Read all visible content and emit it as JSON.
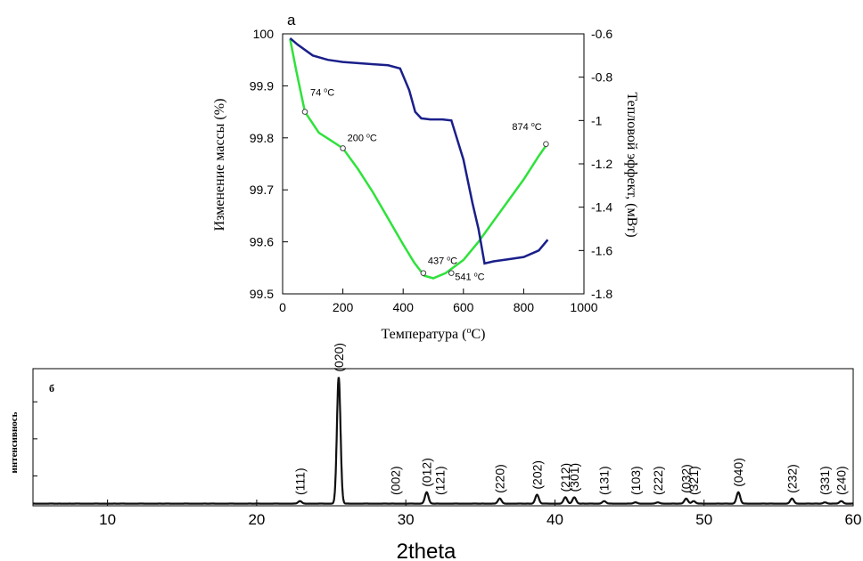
{
  "chart_data": [
    {
      "panel_label": "a",
      "type": "line",
      "xlabel": "Температура (°C)",
      "xlabel_base": "Температура (",
      "xlabel_sup": "o",
      "xlabel_end": "C)",
      "ylabel": "Изменение массы (%)",
      "y2label": "Тепловой эффект, (мВт)",
      "xlim": [
        0,
        1000
      ],
      "ylim": [
        99.5,
        100
      ],
      "y2lim": [
        -1.8,
        -0.6
      ],
      "x_ticks": [
        "0",
        "200",
        "400",
        "600",
        "800",
        "1000"
      ],
      "y_ticks": [
        "99.5",
        "99.6",
        "99.7",
        "99.8",
        "99.9",
        "100"
      ],
      "y2_ticks": [
        "-1.8",
        "-1.6",
        "-1.4",
        "-1.2",
        "-1",
        "-0.8",
        "-0.6"
      ],
      "series": [
        {
          "axis": "left",
          "color": "#2ee23a",
          "x": [
            25,
            45,
            74,
            120,
            160,
            200,
            250,
            300,
            350,
            400,
            437,
            470,
            500,
            541,
            600,
            650,
            700,
            750,
            800,
            850,
            874
          ],
          "y": [
            99.99,
            99.93,
            99.85,
            99.81,
            99.795,
            99.78,
            99.74,
            99.695,
            99.645,
            99.595,
            99.56,
            99.535,
            99.53,
            99.54,
            99.565,
            99.6,
            99.64,
            99.68,
            99.72,
            99.765,
            99.785
          ]
        },
        {
          "axis": "right",
          "color": "#1a1f8a",
          "x": [
            25,
            50,
            100,
            150,
            200,
            250,
            300,
            350,
            390,
            420,
            440,
            460,
            490,
            530,
            560,
            600,
            630,
            650,
            670,
            700,
            750,
            800,
            850,
            880
          ],
          "y": [
            -0.62,
            -0.65,
            -0.7,
            -0.72,
            -0.73,
            -0.735,
            -0.74,
            -0.745,
            -0.76,
            -0.86,
            -0.96,
            -0.99,
            -0.995,
            -0.995,
            -1.0,
            -1.18,
            -1.38,
            -1.5,
            -1.66,
            -1.65,
            -1.64,
            -1.63,
            -1.6,
            -1.55
          ]
        }
      ],
      "annotations": [
        {
          "text": "74 °C",
          "text_base": "74 ",
          "text_sup": "o",
          "text_end": "C",
          "x": 74,
          "y": 99.85
        },
        {
          "text": "200 °C",
          "text_base": "200 ",
          "text_sup": "o",
          "text_end": "C",
          "x": 200,
          "y": 99.78
        },
        {
          "text": "437 °C",
          "text_base": "437 ",
          "text_sup": "o",
          "text_end": "C",
          "x": 467,
          "y": 99.54
        },
        {
          "text": "541 °C",
          "text_base": "541 ",
          "text_sup": "o",
          "text_end": "C",
          "x": 560,
          "y": 99.54
        },
        {
          "text": "874 °C",
          "text_base": "874 ",
          "text_sup": "o",
          "text_end": "C",
          "x": 874,
          "y": 99.788
        }
      ]
    },
    {
      "panel_label": "б",
      "type": "line",
      "xlabel": "2theta",
      "ylabel": "интенсивность",
      "ylabel_display": "интенсивнось",
      "xlim": [
        5,
        60
      ],
      "ylim": [
        0,
        100
      ],
      "x_ticks": [
        "10",
        "20",
        "30",
        "40",
        "50",
        "60"
      ],
      "peaks": [
        {
          "label": "(111)",
          "x": 22.9,
          "h": 2
        },
        {
          "label": "(020)",
          "x": 25.5,
          "h": 100
        },
        {
          "label": "(002)",
          "x": 29.3,
          "h": 0
        },
        {
          "label": "(012)",
          "x": 31.4,
          "h": 9
        },
        {
          "label": "(121)",
          "x": 32.3,
          "h": 0
        },
        {
          "label": "(220)",
          "x": 36.3,
          "h": 4
        },
        {
          "label": "(202)",
          "x": 38.8,
          "h": 7
        },
        {
          "label": "(212)",
          "x": 40.7,
          "h": 5
        },
        {
          "label": "(301)",
          "x": 41.3,
          "h": 5
        },
        {
          "label": "(131)",
          "x": 43.3,
          "h": 2
        },
        {
          "label": "(103)",
          "x": 45.4,
          "h": 1
        },
        {
          "label": "(222)",
          "x": 46.9,
          "h": 1
        },
        {
          "label": "(032)",
          "x": 48.8,
          "h": 4
        },
        {
          "label": "(321)",
          "x": 49.3,
          "h": 2
        },
        {
          "label": "(040)",
          "x": 52.3,
          "h": 9
        },
        {
          "label": "(232)",
          "x": 55.9,
          "h": 4
        },
        {
          "label": "(331)",
          "x": 58.1,
          "h": 1
        },
        {
          "label": "(240)",
          "x": 59.2,
          "h": 2
        }
      ]
    }
  ]
}
